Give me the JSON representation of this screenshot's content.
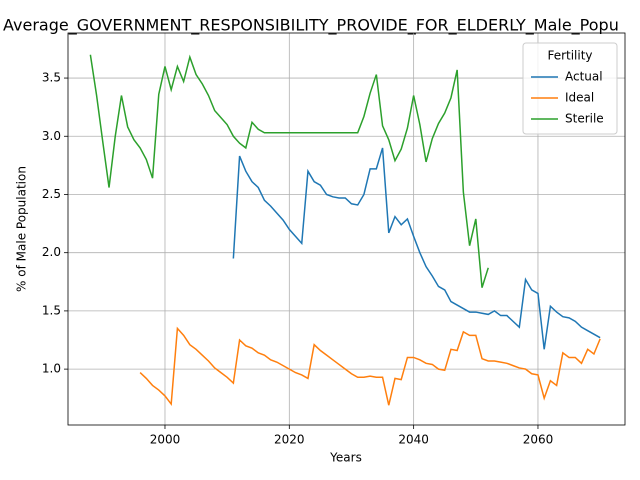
{
  "chart_data": {
    "type": "line",
    "title": "Average_GOVERNMENT_RESPONSIBILITY_PROVIDE_FOR_ELDERLY_Male_Popu",
    "xlabel": "Years",
    "ylabel": "% of Male Population",
    "x": [
      1988,
      1989,
      1990,
      1991,
      1992,
      1993,
      1994,
      1995,
      1996,
      1997,
      1998,
      1999,
      2000,
      2001,
      2002,
      2003,
      2004,
      2005,
      2006,
      2007,
      2008,
      2009,
      2010,
      2011,
      2012,
      2013,
      2014,
      2015,
      2016,
      2017,
      2018,
      2019,
      2020,
      2021,
      2022,
      2023,
      2024,
      2025,
      2026,
      2027,
      2028,
      2029,
      2030,
      2031,
      2032,
      2033,
      2034,
      2035,
      2036,
      2037,
      2038,
      2039,
      2040,
      2041,
      2042,
      2043,
      2044,
      2045,
      2046,
      2047,
      2048,
      2049,
      2050,
      2051,
      2052,
      2053,
      2054,
      2055,
      2056,
      2057,
      2058,
      2059,
      2060,
      2061,
      2062,
      2063,
      2064,
      2065,
      2066,
      2067,
      2068,
      2069,
      2070
    ],
    "series": [
      {
        "name": "Actual",
        "color": "#1f77b4",
        "values": [
          null,
          null,
          null,
          null,
          null,
          null,
          null,
          null,
          null,
          null,
          null,
          null,
          null,
          null,
          null,
          null,
          null,
          null,
          null,
          null,
          null,
          null,
          null,
          1.95,
          2.83,
          2.7,
          2.61,
          2.56,
          2.45,
          2.4,
          2.34,
          2.28,
          2.2,
          2.14,
          2.08,
          2.7,
          2.61,
          2.58,
          2.5,
          2.48,
          2.47,
          2.47,
          2.42,
          2.41,
          2.5,
          2.72,
          2.72,
          2.9,
          2.17,
          2.31,
          2.24,
          2.29,
          2.14,
          2.0,
          1.88,
          1.8,
          1.71,
          1.68,
          1.58,
          1.55,
          1.52,
          1.49,
          1.49,
          1.48,
          1.47,
          1.5,
          1.46,
          1.46,
          1.41,
          1.36,
          1.77,
          1.68,
          1.65,
          1.17,
          1.54,
          1.49,
          1.45,
          1.44,
          1.41,
          1.36,
          1.33,
          1.3,
          1.27
        ]
      },
      {
        "name": "Ideal",
        "color": "#ff7f0e",
        "values": [
          null,
          null,
          null,
          null,
          null,
          null,
          null,
          null,
          0.97,
          0.92,
          0.86,
          0.82,
          0.77,
          0.7,
          1.35,
          1.29,
          1.21,
          1.17,
          1.12,
          1.07,
          1.01,
          0.97,
          0.93,
          0.88,
          1.25,
          1.2,
          1.18,
          1.14,
          1.12,
          1.08,
          1.06,
          1.03,
          1.0,
          0.97,
          0.95,
          0.92,
          1.21,
          1.16,
          1.12,
          1.08,
          1.04,
          1.0,
          0.96,
          0.93,
          0.93,
          0.94,
          0.93,
          0.93,
          0.69,
          0.92,
          0.91,
          1.1,
          1.1,
          1.08,
          1.05,
          1.04,
          1.0,
          0.99,
          1.17,
          1.16,
          1.32,
          1.29,
          1.29,
          1.09,
          1.07,
          1.07,
          1.06,
          1.05,
          1.03,
          1.01,
          1.0,
          0.96,
          0.95,
          0.75,
          0.9,
          0.86,
          1.14,
          1.1,
          1.1,
          1.05,
          1.17,
          1.13,
          1.26
        ]
      },
      {
        "name": "Sterile",
        "color": "#2ca02c",
        "values": [
          3.7,
          3.35,
          2.95,
          2.56,
          3.0,
          3.35,
          3.08,
          2.97,
          2.9,
          2.8,
          2.64,
          3.36,
          3.6,
          3.4,
          3.6,
          3.47,
          3.68,
          3.53,
          3.45,
          3.35,
          3.22,
          3.16,
          3.1,
          3.0,
          2.94,
          2.9,
          3.12,
          3.06,
          3.03,
          3.03,
          3.03,
          3.03,
          3.03,
          3.03,
          3.03,
          3.03,
          3.03,
          3.03,
          3.03,
          3.03,
          3.03,
          3.03,
          3.03,
          3.03,
          3.17,
          3.37,
          3.53,
          3.09,
          2.97,
          2.79,
          2.89,
          3.07,
          3.35,
          3.1,
          2.78,
          2.98,
          3.11,
          3.2,
          3.33,
          3.57,
          2.52,
          2.06,
          2.29,
          1.7,
          1.87,
          null,
          null,
          null,
          null,
          null,
          null,
          null,
          null,
          null,
          null,
          null,
          null,
          null,
          null,
          null,
          null,
          null,
          null
        ]
      }
    ],
    "xlim": [
      1984.4,
      2074
    ],
    "ylim": [
      0.52,
      3.887
    ],
    "xticks": [
      2000,
      2020,
      2040,
      2060
    ],
    "yticks": [
      {
        "value": 1,
        "label": "1.0"
      },
      1.5,
      {
        "value": 2,
        "label": "2.0"
      },
      2.5,
      {
        "value": 3,
        "label": "3.0"
      },
      3.5
    ],
    "grid": true,
    "legend_title": "Fertility",
    "legend_position": "upper right"
  }
}
